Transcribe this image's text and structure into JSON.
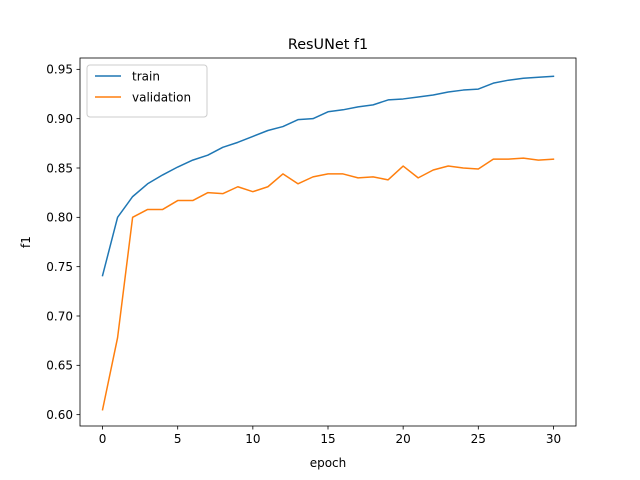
{
  "chart_data": {
    "type": "line",
    "title": "ResUNet f1",
    "xlabel": "epoch",
    "ylabel": "f1",
    "xlim": [
      -1.5,
      31.5
    ],
    "ylim": [
      0.5885,
      0.9615
    ],
    "xticks": [
      0,
      5,
      10,
      15,
      20,
      25,
      30
    ],
    "xtick_labels": [
      "0",
      "5",
      "10",
      "15",
      "20",
      "25",
      "30"
    ],
    "yticks": [
      0.6,
      0.65,
      0.7,
      0.75,
      0.8,
      0.85,
      0.9,
      0.95
    ],
    "ytick_labels": [
      "0.60",
      "0.65",
      "0.70",
      "0.75",
      "0.80",
      "0.85",
      "0.90",
      "0.95"
    ],
    "grid": false,
    "legend_position": "top-left",
    "x": [
      0,
      1,
      2,
      3,
      4,
      5,
      6,
      7,
      8,
      9,
      10,
      11,
      12,
      13,
      14,
      15,
      16,
      17,
      18,
      19,
      20,
      21,
      22,
      23,
      24,
      25,
      26,
      27,
      28,
      29,
      30
    ],
    "series": [
      {
        "name": "train",
        "color": "#1f77b4",
        "values": [
          0.741,
          0.8,
          0.821,
          0.834,
          0.843,
          0.851,
          0.858,
          0.863,
          0.871,
          0.876,
          0.882,
          0.888,
          0.892,
          0.899,
          0.9,
          0.907,
          0.909,
          0.912,
          0.914,
          0.919,
          0.92,
          0.922,
          0.924,
          0.927,
          0.929,
          0.93,
          0.936,
          0.939,
          0.941,
          0.942,
          0.943
        ]
      },
      {
        "name": "validation",
        "color": "#ff7f0e",
        "values": [
          0.605,
          0.678,
          0.8,
          0.808,
          0.808,
          0.817,
          0.817,
          0.825,
          0.824,
          0.831,
          0.826,
          0.831,
          0.844,
          0.834,
          0.841,
          0.844,
          0.844,
          0.84,
          0.841,
          0.838,
          0.852,
          0.84,
          0.848,
          0.852,
          0.85,
          0.849,
          0.859,
          0.859,
          0.86,
          0.858,
          0.859
        ]
      }
    ]
  }
}
